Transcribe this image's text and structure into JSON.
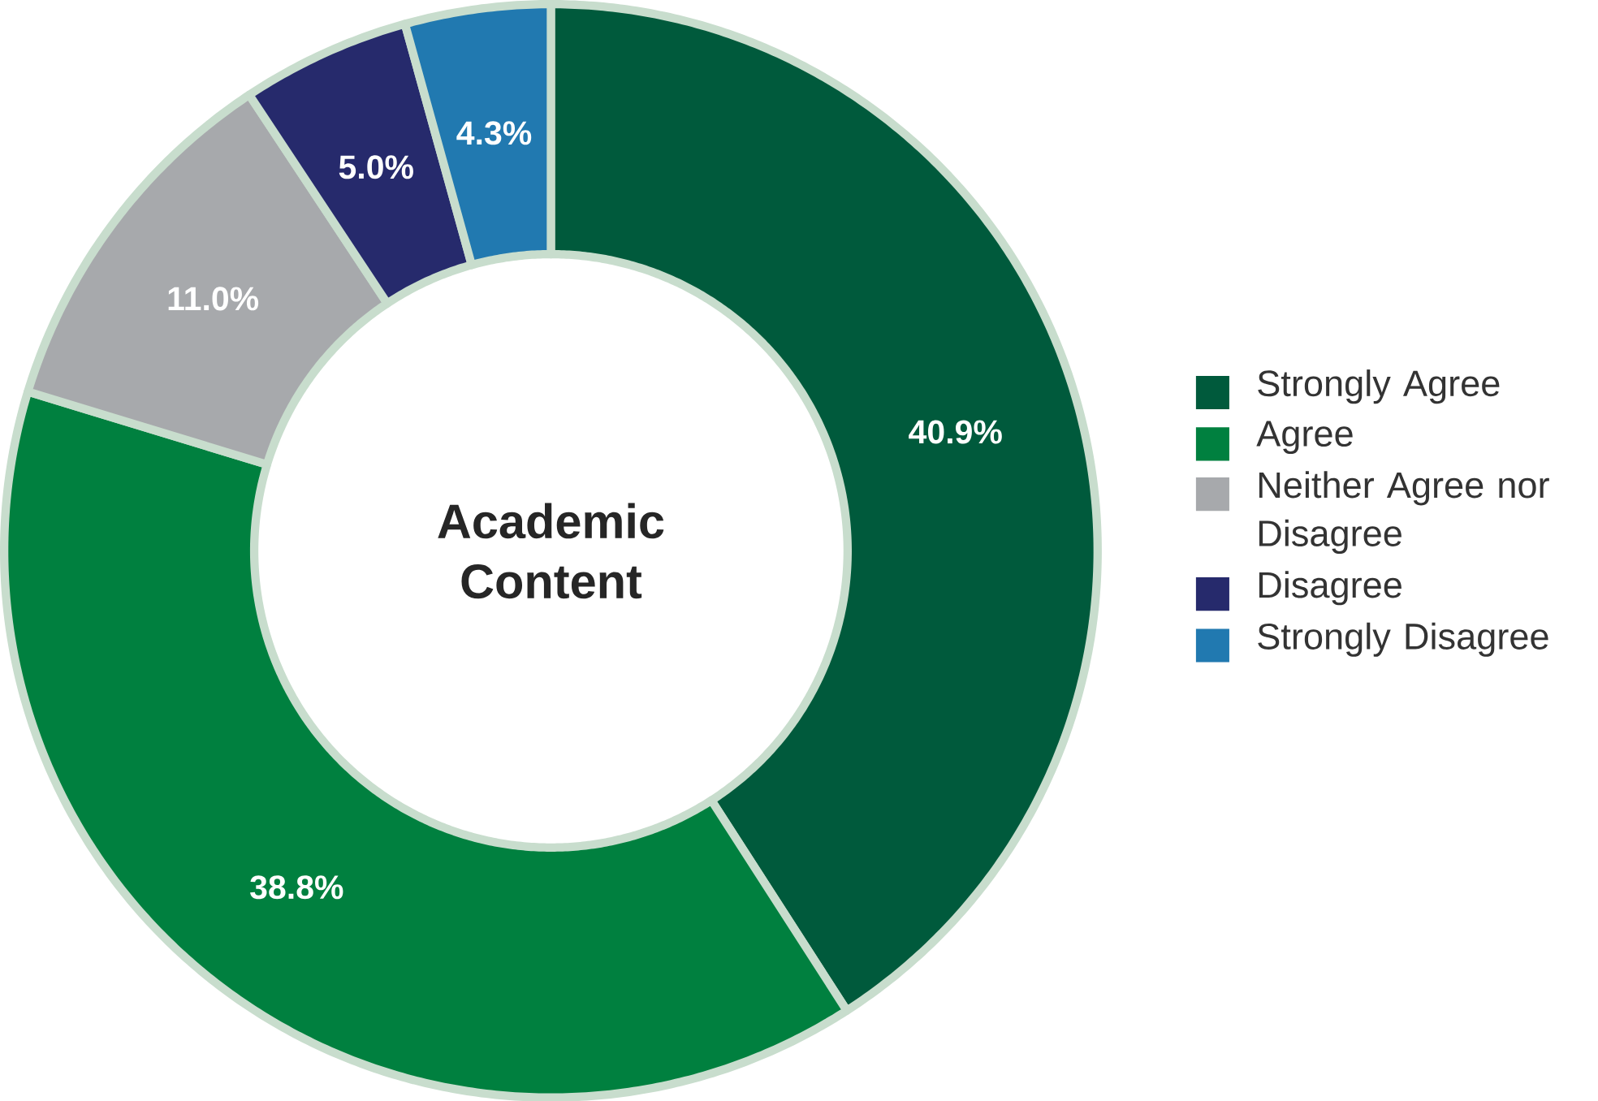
{
  "chart_data": {
    "type": "donut",
    "title": "Academic Content",
    "categories": [
      "Strongly Agree",
      "Agree",
      "Neither Agree nor Disagree",
      "Disagree",
      "Strongly Disagree"
    ],
    "values": [
      40.9,
      38.8,
      11.0,
      5.0,
      4.3
    ],
    "colors": [
      "#005a3c",
      "#00803f",
      "#a7a9ac",
      "#262a6c",
      "#2179b0"
    ],
    "value_labels": [
      "40.9%",
      "38.8%",
      "11.0%",
      "5.0%",
      "4.3%"
    ],
    "legend": "right"
  }
}
